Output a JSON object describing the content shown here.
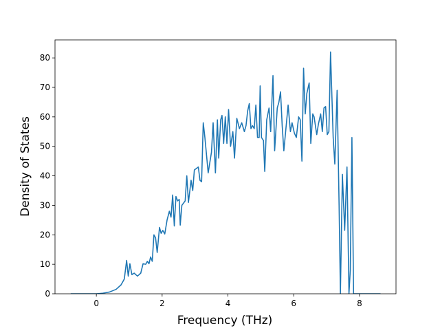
{
  "chart_data": {
    "type": "line",
    "xlabel": "Frequency (THz)",
    "ylabel": "Density of States",
    "color": "#1f77b4",
    "x": [
      -0.78,
      0,
      0.2,
      0.4,
      0.6,
      0.75,
      0.85,
      0.92,
      0.97,
      1.02,
      1.08,
      1.15,
      1.25,
      1.35,
      1.42,
      1.5,
      1.55,
      1.6,
      1.65,
      1.7,
      1.75,
      1.8,
      1.85,
      1.92,
      1.97,
      2.02,
      2.08,
      2.15,
      2.22,
      2.27,
      2.32,
      2.37,
      2.42,
      2.47,
      2.52,
      2.55,
      2.6,
      2.7,
      2.75,
      2.8,
      2.88,
      2.93,
      2.98,
      3.1,
      3.15,
      3.2,
      3.25,
      3.3,
      3.4,
      3.5,
      3.55,
      3.62,
      3.68,
      3.72,
      3.78,
      3.82,
      3.87,
      3.92,
      3.97,
      4.02,
      4.08,
      4.15,
      4.2,
      4.27,
      4.35,
      4.42,
      4.5,
      4.55,
      4.6,
      4.65,
      4.7,
      4.75,
      4.8,
      4.85,
      4.9,
      4.95,
      4.98,
      5.02,
      5.08,
      5.12,
      5.18,
      5.25,
      5.3,
      5.37,
      5.42,
      5.5,
      5.55,
      5.6,
      5.65,
      5.7,
      5.78,
      5.83,
      5.9,
      5.95,
      6.02,
      6.08,
      6.15,
      6.2,
      6.25,
      6.3,
      6.35,
      6.4,
      6.47,
      6.52,
      6.58,
      6.62,
      6.7,
      6.75,
      6.82,
      6.87,
      6.92,
      6.97,
      7.02,
      7.07,
      7.12,
      7.2,
      7.25,
      7.32,
      7.38,
      7.42,
      7.48,
      7.55,
      7.62,
      7.68,
      7.72,
      7.77,
      7.82,
      8.64
    ],
    "values": [
      0,
      0,
      0.2,
      0.6,
      1.5,
      3,
      5,
      11.3,
      6,
      10.2,
      6.5,
      7,
      6,
      7,
      10.2,
      10,
      11,
      10.2,
      12.5,
      11,
      20,
      19,
      14,
      22.5,
      20.5,
      21.5,
      20.3,
      25,
      28,
      26,
      33.5,
      23,
      33,
      31.5,
      32,
      23.3,
      30,
      31.5,
      40,
      31,
      38.5,
      35,
      42,
      43,
      38.5,
      38,
      58,
      53,
      41,
      48,
      58,
      41,
      59,
      46,
      59,
      60.5,
      51,
      60,
      51,
      62.5,
      50,
      55,
      46,
      59.5,
      56,
      58,
      55,
      57,
      62,
      64.5,
      56,
      57,
      56,
      64,
      53,
      53,
      70.5,
      53,
      52,
      41.5,
      59,
      63,
      55,
      74,
      48.5,
      63,
      65,
      68.5,
      57,
      48.5,
      58,
      64,
      55,
      58,
      54.5,
      53,
      60,
      59,
      45,
      76.5,
      61,
      68,
      71.5,
      51,
      61,
      60,
      54,
      57.5,
      61,
      55,
      63,
      63.5,
      54,
      55,
      82,
      53,
      44,
      69,
      30,
      0,
      40.5,
      21.5,
      43,
      0,
      8,
      53,
      0,
      0
    ],
    "xlim": [
      -1.257,
      9.11
    ],
    "ylim": [
      0,
      86.1
    ],
    "xticks": [
      0,
      2,
      4,
      6,
      8
    ],
    "yticks": [
      0,
      10,
      20,
      30,
      40,
      50,
      60,
      70,
      80
    ]
  }
}
